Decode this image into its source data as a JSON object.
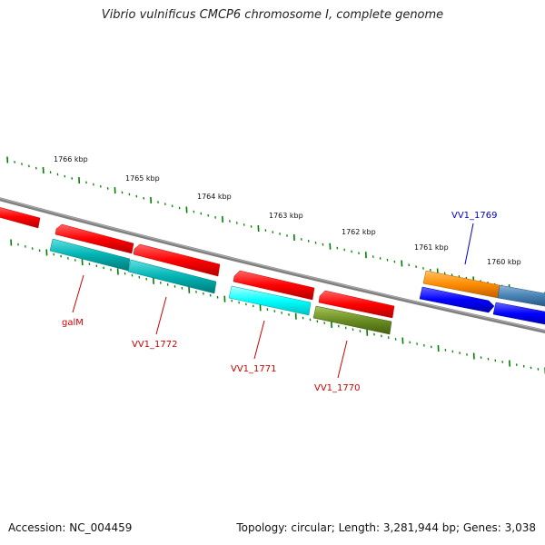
{
  "title": "Vibrio vulnificus CMCP6 chromosome I, complete genome",
  "footer": {
    "accession": "Accession: NC_004459",
    "summary": "Topology: circular; Length: 3,281,944 bp; Genes: 3,038"
  },
  "tick_labels": [
    "1766 kbp",
    "1765 kbp",
    "1764 kbp",
    "1763 kbp",
    "1762 kbp",
    "1761 kbp",
    "1760 kbp"
  ],
  "gene_labels": [
    {
      "text": "galM",
      "color": "#cc0000"
    },
    {
      "text": "VV1_1772",
      "color": "#cc0000"
    },
    {
      "text": "VV1_1771",
      "color": "#cc0000"
    },
    {
      "text": "VV1_1770",
      "color": "#cc0000"
    },
    {
      "text": "VV1_1769",
      "color": "#0000cc"
    }
  ],
  "colors": {
    "backbone": "#808080",
    "tick": "#008000",
    "red": "#ff0000",
    "teal": "#00b3b3",
    "cyan": "#00ffff",
    "olive": "#6b8e23",
    "orange": "#ff8c00",
    "steelblue": "#4682b4",
    "blue": "#0000ff"
  }
}
